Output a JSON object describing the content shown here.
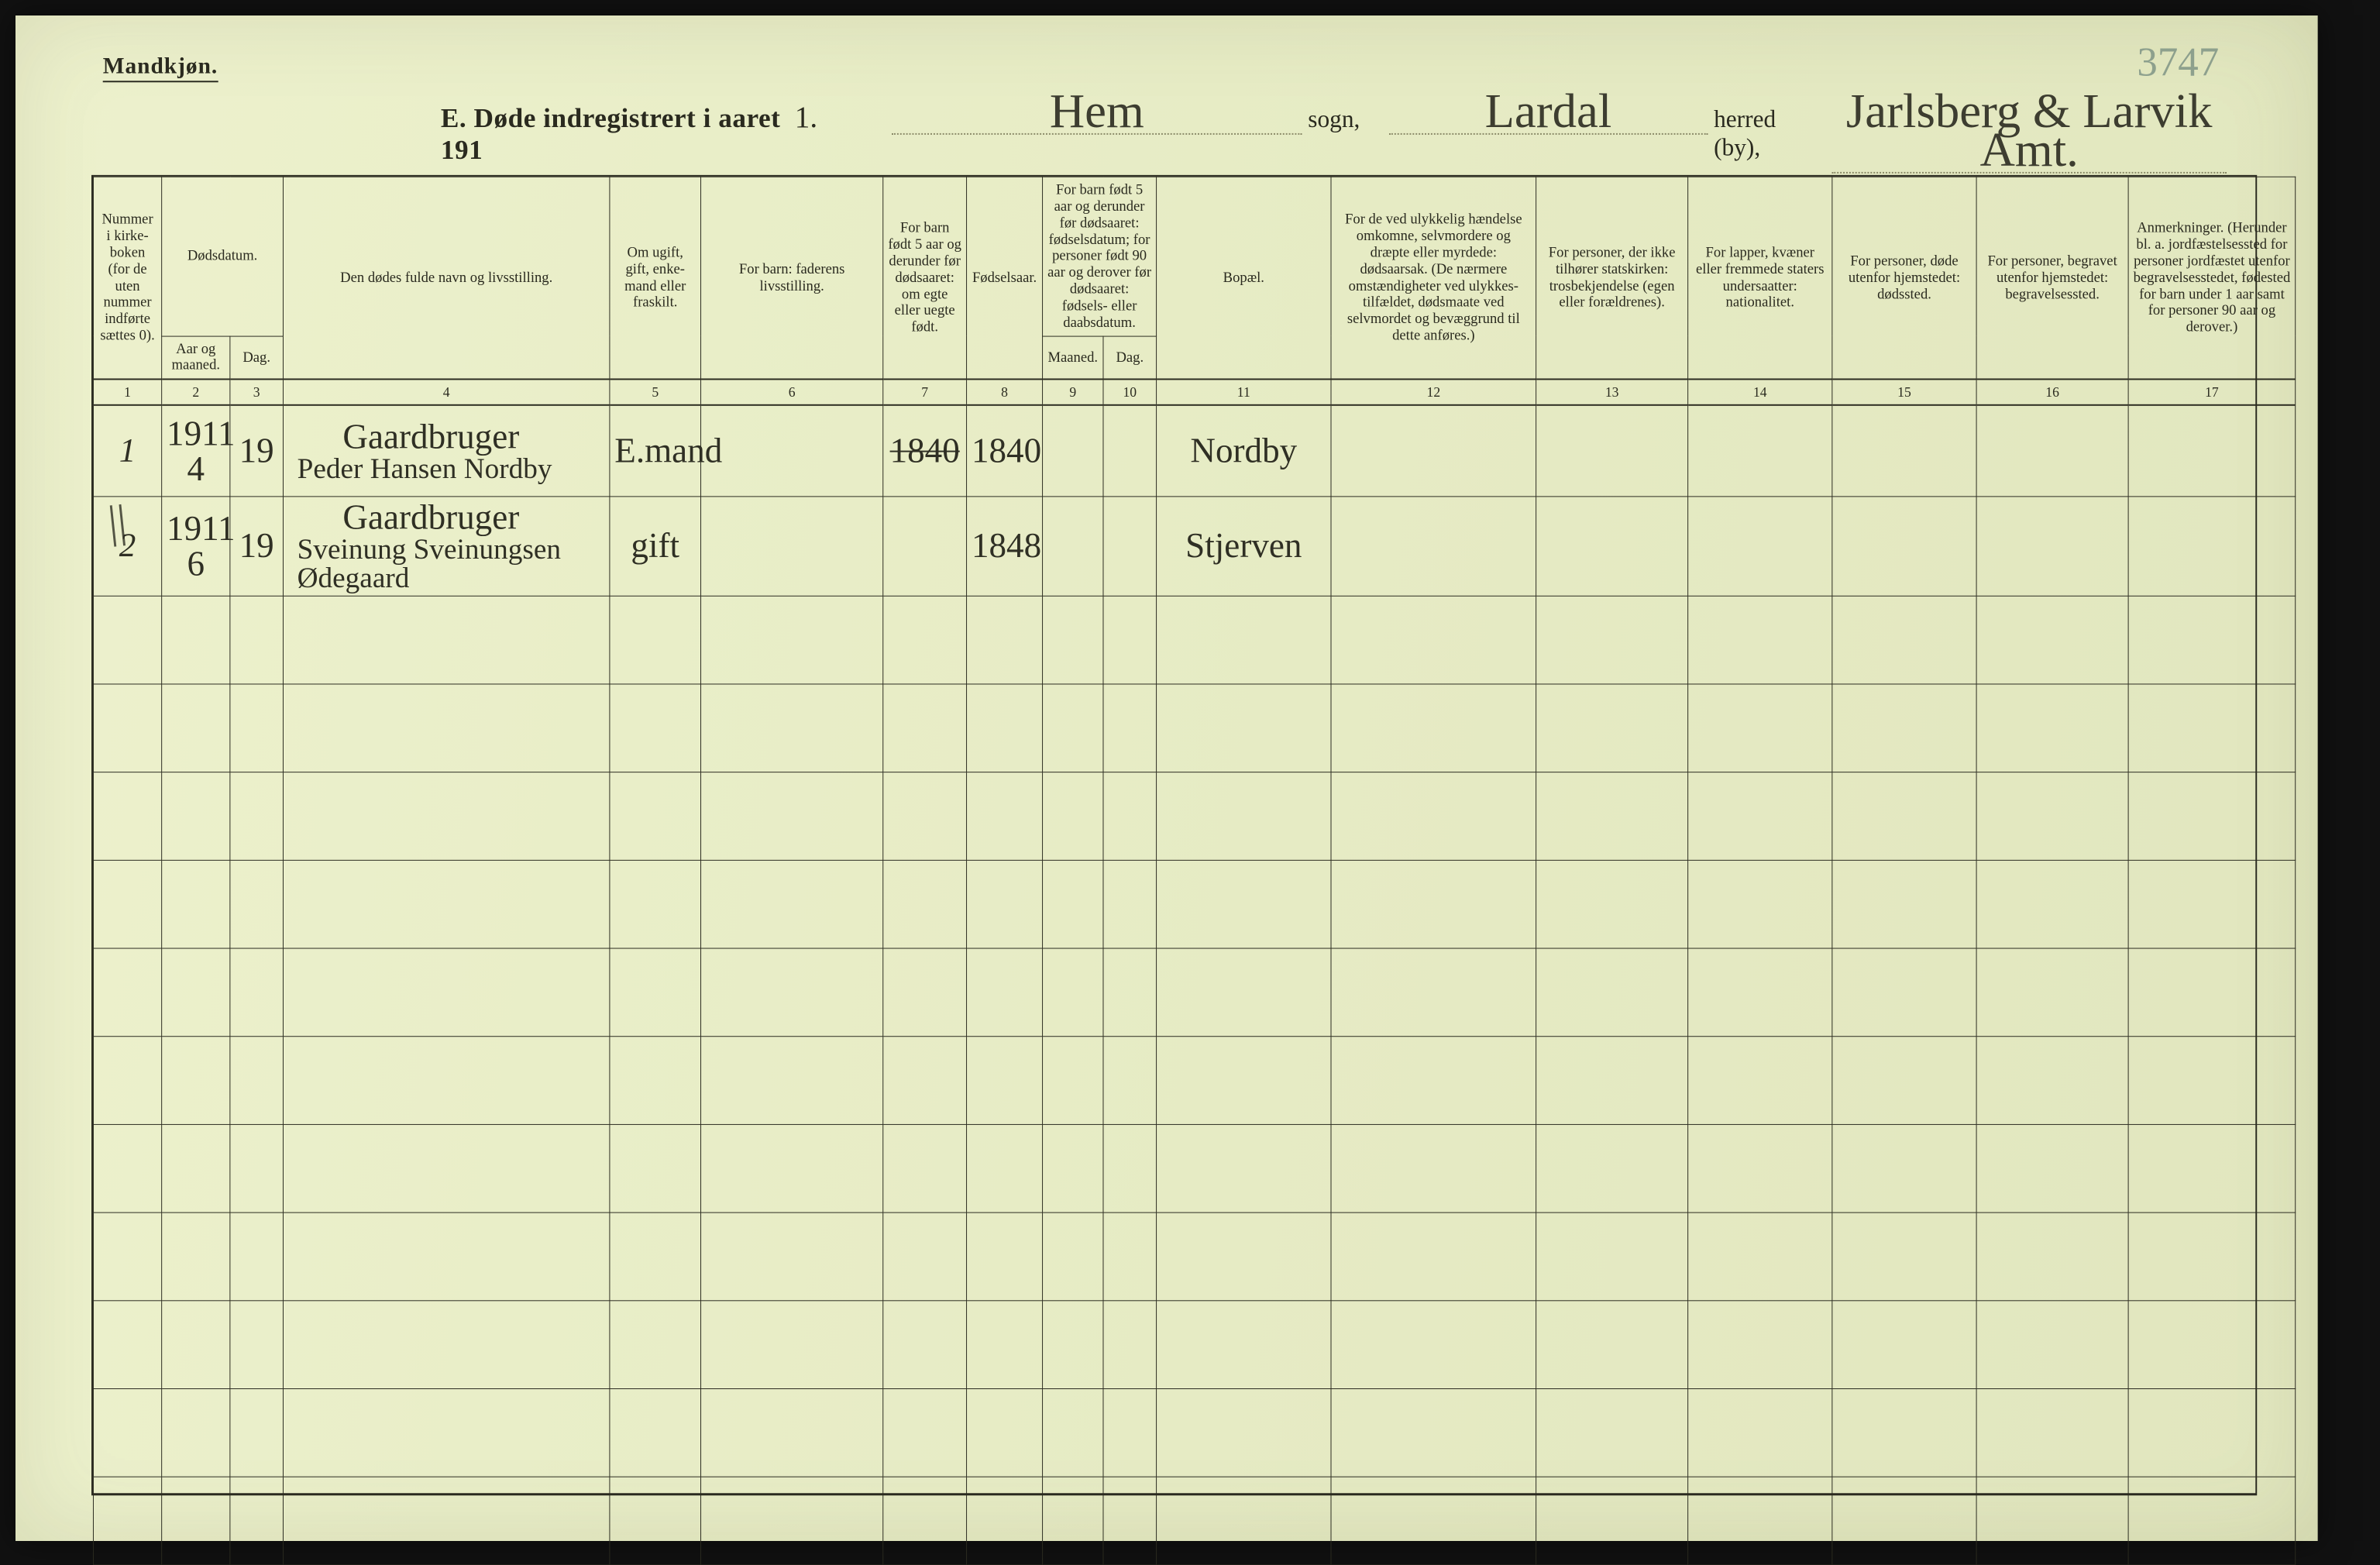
{
  "gender_label": "Mandkjøn.",
  "page_number_hand": "3747",
  "title": {
    "printed_prefix": "E.  Døde indregistrert i aaret 191",
    "year_suffix_hand": "1.",
    "parish_hand": "Hem",
    "parish_label": "sogn,",
    "district_hand": "Lardal",
    "district_label": "herred (by),",
    "county_hand": "Jarlsberg & Larvik Amt."
  },
  "columns": {
    "c1": "Nummer i kirke­boken (for de uten nummer indførte sættes 0).",
    "c23_group": "Dødsdatum.",
    "c2": "Aar og maaned.",
    "c3": "Dag.",
    "c4": "Den dødes fulde navn og livsstilling.",
    "c5": "Om ugift, gift, enke­mand eller fraskilt.",
    "c6": "For barn: faderens livsstilling.",
    "c7": "For barn født 5 aar og derunder før døds­aaret: om egte eller uegte født.",
    "c8": "Fødsels­aar.",
    "c910_group": "For barn født 5 aar og der­under før dødsaaret: fødselsdatum; for personer født 90 aar og derover før dødsaaret: fødsels- eller daabsdatum.",
    "c9": "Maaned.",
    "c10": "Dag.",
    "c11": "Bopæl.",
    "c12": "For de ved ulykkelig hændelse omkomne, selvmordere og dræpte eller myrdede: dødsaarsak. (De nærmere omstæn­digheter ved ulykkes­tilfældet, dødsmaate ved selvmordet og bevæggrund til dette anføres.)",
    "c13": "For personer, der ikke tilhører statskirken: trosbekjendelse (egen eller forældrenes).",
    "c14": "For lapper, kvæner eller fremmede staters undersaatter: nationalitet.",
    "c15": "For personer, døde utenfor hjemstedet: dødssted.",
    "c16": "For personer, begravet utenfor hjemstedet: begravelsessted.",
    "c17": "Anmerkninger. (Herunder bl. a. jordfæstelsessted for personer jordfæstet utenfor begravelses­stedet, fødested for barn under 1 aar samt for personer 90 aar og derover.)"
  },
  "col_numbers": [
    "1",
    "2",
    "3",
    "4",
    "5",
    "6",
    "7",
    "8",
    "9",
    "10",
    "11",
    "12",
    "13",
    "14",
    "15",
    "16",
    "17"
  ],
  "rows": [
    {
      "no": "1",
      "year_month": [
        "1911",
        "4"
      ],
      "day": "19",
      "name_lines": [
        "Gaardbruger",
        "Peder Hansen Nordby"
      ],
      "status": "E.mand",
      "c6": "",
      "c7_struck": "1840",
      "birth_year": "1840",
      "c9": "",
      "c10": "",
      "residence": "Nordby",
      "c12": "",
      "c13": "",
      "c14": "",
      "c15": "",
      "c16": "",
      "c17": ""
    },
    {
      "no": "2",
      "year_month": [
        "1911",
        "6"
      ],
      "day": "19",
      "name_lines": [
        "Gaardbruger",
        "Sveinung Sveinungsen",
        "Ødegaard"
      ],
      "status": "gift",
      "c6": "",
      "c7_struck": "",
      "birth_year": "1848",
      "c9": "",
      "c10": "",
      "residence": "Stjerven",
      "c12": "",
      "c13": "",
      "c14": "",
      "c15": "",
      "c16": "",
      "c17": ""
    }
  ],
  "tally_mark": "||",
  "empty_row_count": 11,
  "colors": {
    "paper": "#e8edc6",
    "ink": "#2a2a1f",
    "hand": "#2f2f24",
    "page_no": "#6b847a"
  }
}
